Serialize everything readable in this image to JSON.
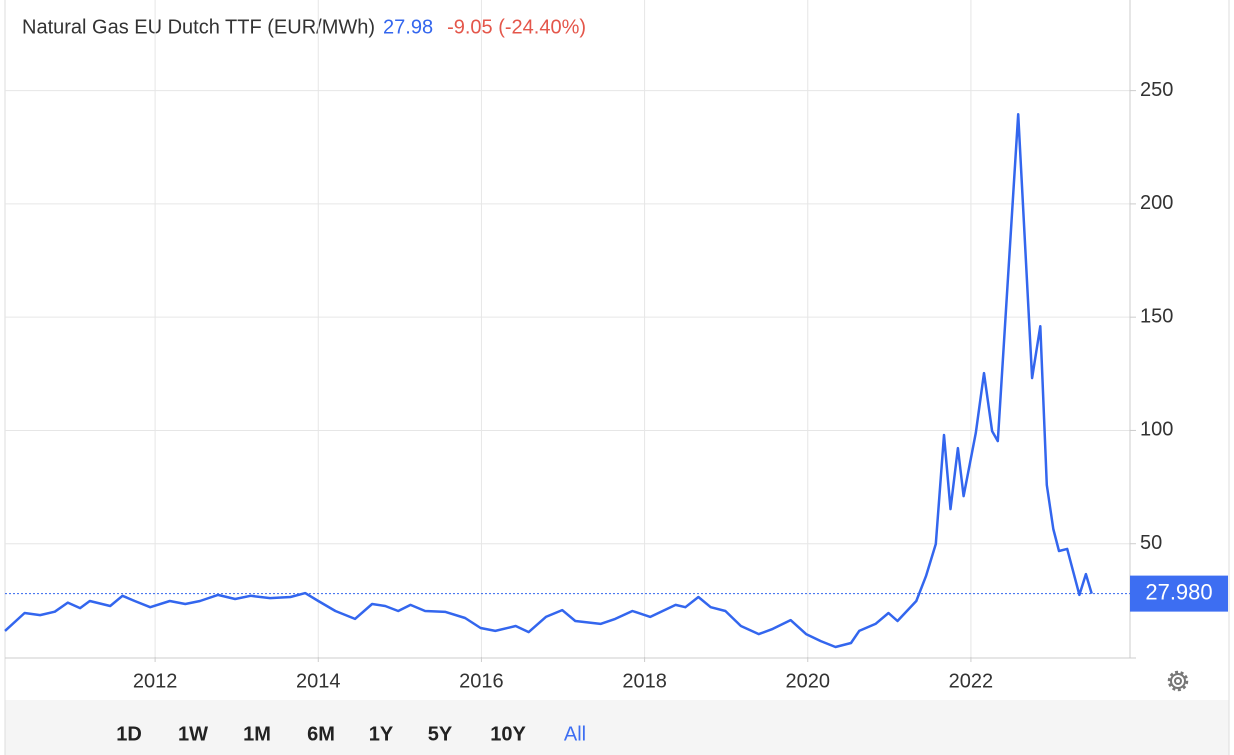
{
  "header": {
    "title": "Natural Gas EU Dutch TTF (EUR/MWh)",
    "change": "-9.05 (-24.40%)"
  },
  "chart_data": {
    "type": "line",
    "x": [
      2010.16,
      2010.4,
      2010.59,
      2010.77,
      2010.93,
      2011.08,
      2011.2,
      2011.45,
      2011.6,
      2011.75,
      2011.94,
      2012.18,
      2012.37,
      2012.55,
      2012.77,
      2012.98,
      2013.17,
      2013.41,
      2013.66,
      2013.84,
      2014.0,
      2014.21,
      2014.45,
      2014.66,
      2014.82,
      2014.98,
      2015.13,
      2015.31,
      2015.56,
      2015.8,
      2015.99,
      2016.17,
      2016.42,
      2016.58,
      2016.79,
      2016.99,
      2017.15,
      2017.46,
      2017.64,
      2017.85,
      2018.07,
      2018.38,
      2018.5,
      2018.66,
      2018.81,
      2018.99,
      2019.18,
      2019.4,
      2019.57,
      2019.79,
      2019.98,
      2020.16,
      2020.34,
      2020.53,
      2020.63,
      2020.83,
      2020.99,
      2021.1,
      2021.33,
      2021.45,
      2021.57,
      2021.67,
      2021.75,
      2021.84,
      2021.91,
      2022.06,
      2022.16,
      2022.26,
      2022.33,
      2022.58,
      2022.75,
      2022.85,
      2022.93,
      2023.01,
      2023.08,
      2023.18,
      2023.33,
      2023.41,
      2023.48
    ],
    "series": [
      {
        "name": "Natural Gas EU Dutch TTF",
        "color": "#3366ee",
        "values": [
          11.5,
          19.4,
          18.5,
          20,
          24,
          21.6,
          24.7,
          22.5,
          27,
          24.7,
          22,
          24.7,
          23.4,
          24.7,
          27.4,
          25.6,
          27,
          26,
          26.5,
          28.2,
          24.7,
          20.3,
          16.8,
          23.4,
          22.5,
          20.3,
          23,
          20.3,
          19.9,
          17.2,
          12.8,
          11.5,
          13.7,
          11,
          17.7,
          20.7,
          15.9,
          14.6,
          16.8,
          20.3,
          17.7,
          23,
          22,
          26.5,
          22,
          20.3,
          13.7,
          10.1,
          12.4,
          16.3,
          10.1,
          7,
          4.4,
          6.2,
          11.5,
          14.6,
          19.4,
          15.9,
          24.7,
          35.7,
          49.9,
          98,
          65.3,
          92.2,
          71,
          98.9,
          125.3,
          99.7,
          95.3,
          239.6,
          123.1,
          146,
          75.9,
          56.5,
          46.8,
          47.7,
          27.4,
          36.6,
          27.98
        ]
      }
    ],
    "price_line": {
      "value": 27.98,
      "label": "27.980"
    },
    "xlim": [
      2010.16,
      2023.95
    ],
    "xticks": [
      2012,
      2014,
      2016,
      2018,
      2020,
      2022
    ],
    "ylim": [
      0,
      290
    ],
    "yticks": [
      50,
      100,
      150,
      200,
      250
    ],
    "grid": true
  },
  "ranges": [
    "1D",
    "1W",
    "1M",
    "6M",
    "1Y",
    "5Y",
    "10Y",
    "All"
  ],
  "active_range": 7
}
